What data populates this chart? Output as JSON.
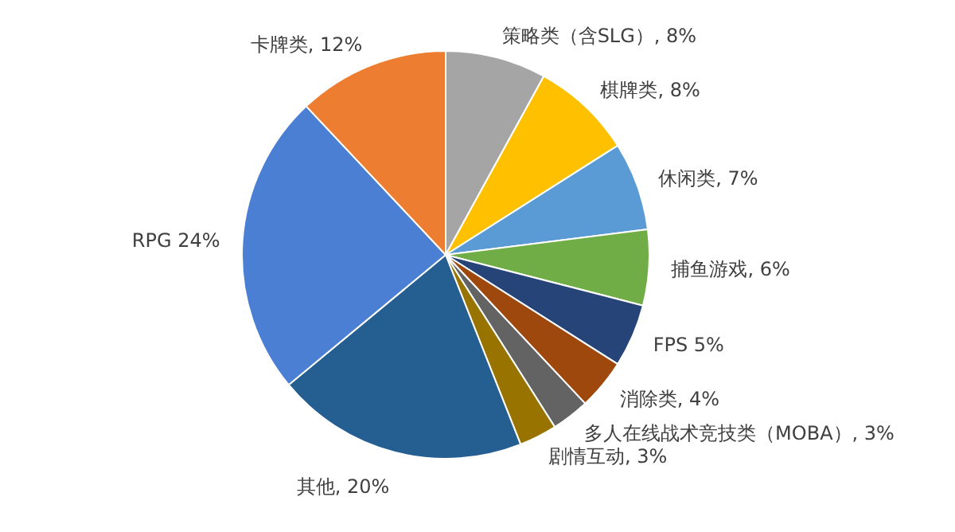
{
  "chart_data": {
    "type": "pie",
    "categories": [
      "策略类（含SLG）",
      "棋牌类",
      "休闲类",
      "捕鱼游戏",
      "FPS",
      "消除类",
      "多人在线战术竞技类（MOBA）",
      "剧情互动",
      "其他",
      "RPG",
      "卡牌类"
    ],
    "values": [
      8,
      8,
      7,
      6,
      5,
      4,
      3,
      3,
      20,
      24,
      12
    ],
    "colors": [
      "#a5a5a5",
      "#ffc000",
      "#5b9bd5",
      "#70ad47",
      "#264478",
      "#9e480e",
      "#636363",
      "#997300",
      "#255e91",
      "#4a7fd4",
      "#ed7d31"
    ],
    "value_labels": [
      ", 8%",
      ", 8%",
      ", 7%",
      ", 6%",
      "5%",
      ", 4%",
      ", 3%",
      ", 3%",
      ", 20%",
      "24%",
      ", 12%"
    ],
    "legend": false
  }
}
